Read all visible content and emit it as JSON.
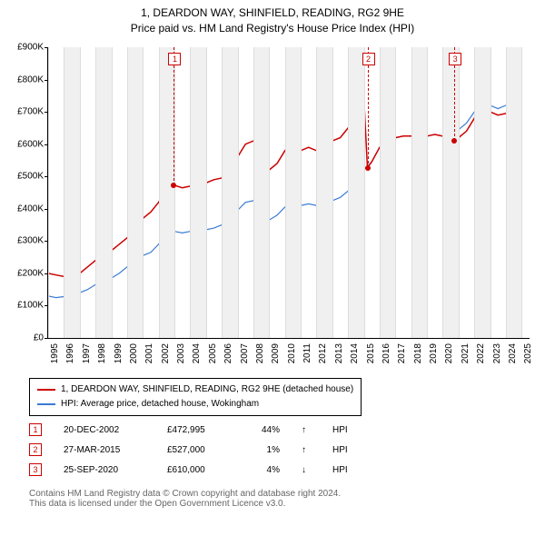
{
  "title_line1": "1, DEARDON WAY, SHINFIELD, READING, RG2 9HE",
  "title_line2": "Price paid vs. HM Land Registry's House Price Index (HPI)",
  "chart": {
    "type": "line",
    "xrange": [
      1995,
      2025.5
    ],
    "yrange": [
      0,
      900000
    ],
    "ytick_step": 100000,
    "ytick_labels": [
      "£0",
      "£100K",
      "£200K",
      "£300K",
      "£400K",
      "£500K",
      "£600K",
      "£700K",
      "£800K",
      "£900K"
    ],
    "xtick_years": [
      1995,
      1996,
      1997,
      1998,
      1999,
      2000,
      2001,
      2002,
      2003,
      2004,
      2005,
      2006,
      2007,
      2008,
      2009,
      2010,
      2011,
      2012,
      2013,
      2014,
      2015,
      2016,
      2017,
      2018,
      2019,
      2020,
      2021,
      2022,
      2023,
      2024,
      2025
    ],
    "band_color": "#f0f0f0",
    "grid_color": "#dddddd",
    "background_color": "#ffffff",
    "series": {
      "red": {
        "label": "1, DEARDON WAY, SHINFIELD, READING, RG2 9HE (detached house)",
        "color": "#cc0000",
        "width": 1.5,
        "points": [
          [
            1995,
            200000
          ],
          [
            1995.5,
            195000
          ],
          [
            1996,
            190000
          ],
          [
            1996.5,
            195000
          ],
          [
            1997,
            200000
          ],
          [
            1997.5,
            220000
          ],
          [
            1998,
            240000
          ],
          [
            1998.5,
            260000
          ],
          [
            1999,
            270000
          ],
          [
            1999.5,
            290000
          ],
          [
            2000,
            310000
          ],
          [
            2000.5,
            340000
          ],
          [
            2001,
            370000
          ],
          [
            2001.5,
            390000
          ],
          [
            2002,
            420000
          ],
          [
            2002.5,
            460000
          ],
          [
            2002.97,
            472995
          ],
          [
            2003.5,
            465000
          ],
          [
            2004,
            470000
          ],
          [
            2004.5,
            485000
          ],
          [
            2005,
            480000
          ],
          [
            2005.5,
            490000
          ],
          [
            2006,
            495000
          ],
          [
            2006.5,
            520000
          ],
          [
            2007,
            560000
          ],
          [
            2007.5,
            600000
          ],
          [
            2008,
            610000
          ],
          [
            2008.5,
            580000
          ],
          [
            2009,
            520000
          ],
          [
            2009.5,
            540000
          ],
          [
            2010,
            580000
          ],
          [
            2010.5,
            600000
          ],
          [
            2011,
            580000
          ],
          [
            2011.5,
            590000
          ],
          [
            2012,
            580000
          ],
          [
            2012.5,
            600000
          ],
          [
            2013,
            610000
          ],
          [
            2013.5,
            620000
          ],
          [
            2014,
            650000
          ],
          [
            2014.5,
            700000
          ],
          [
            2015,
            750000
          ],
          [
            2015.23,
            527000
          ],
          [
            2015.5,
            545000
          ],
          [
            2016,
            590000
          ],
          [
            2016.5,
            610000
          ],
          [
            2017,
            620000
          ],
          [
            2017.5,
            625000
          ],
          [
            2018,
            625000
          ],
          [
            2018.5,
            620000
          ],
          [
            2019,
            625000
          ],
          [
            2019.5,
            630000
          ],
          [
            2020,
            625000
          ],
          [
            2020.5,
            630000
          ],
          [
            2020.73,
            610000
          ],
          [
            2021,
            620000
          ],
          [
            2021.5,
            640000
          ],
          [
            2022,
            680000
          ],
          [
            2022.5,
            720000
          ],
          [
            2023,
            700000
          ],
          [
            2023.5,
            690000
          ],
          [
            2024,
            695000
          ],
          [
            2024.5,
            700000
          ],
          [
            2025,
            700000
          ]
        ]
      },
      "blue": {
        "label": "HPI: Average price, detached house, Wokingham",
        "color": "#3a7bd5",
        "width": 1.2,
        "points": [
          [
            1995,
            130000
          ],
          [
            1995.5,
            125000
          ],
          [
            1996,
            128000
          ],
          [
            1996.5,
            132000
          ],
          [
            1997,
            140000
          ],
          [
            1997.5,
            150000
          ],
          [
            1998,
            165000
          ],
          [
            1998.5,
            175000
          ],
          [
            1999,
            185000
          ],
          [
            1999.5,
            200000
          ],
          [
            2000,
            220000
          ],
          [
            2000.5,
            240000
          ],
          [
            2001,
            255000
          ],
          [
            2001.5,
            265000
          ],
          [
            2002,
            290000
          ],
          [
            2002.5,
            320000
          ],
          [
            2003,
            330000
          ],
          [
            2003.5,
            325000
          ],
          [
            2004,
            330000
          ],
          [
            2004.5,
            340000
          ],
          [
            2005,
            335000
          ],
          [
            2005.5,
            340000
          ],
          [
            2006,
            350000
          ],
          [
            2006.5,
            365000
          ],
          [
            2007,
            395000
          ],
          [
            2007.5,
            420000
          ],
          [
            2008,
            425000
          ],
          [
            2008.5,
            405000
          ],
          [
            2009,
            365000
          ],
          [
            2009.5,
            380000
          ],
          [
            2010,
            405000
          ],
          [
            2010.5,
            420000
          ],
          [
            2011,
            410000
          ],
          [
            2011.5,
            415000
          ],
          [
            2012,
            410000
          ],
          [
            2012.5,
            420000
          ],
          [
            2013,
            425000
          ],
          [
            2013.5,
            435000
          ],
          [
            2014,
            455000
          ],
          [
            2014.5,
            490000
          ],
          [
            2015,
            520000
          ],
          [
            2015.5,
            545000
          ],
          [
            2016,
            590000
          ],
          [
            2016.5,
            610000
          ],
          [
            2017,
            620000
          ],
          [
            2017.5,
            625000
          ],
          [
            2018,
            625000
          ],
          [
            2018.5,
            620000
          ],
          [
            2019,
            625000
          ],
          [
            2019.5,
            630000
          ],
          [
            2020,
            625000
          ],
          [
            2020.5,
            635000
          ],
          [
            2021,
            645000
          ],
          [
            2021.5,
            665000
          ],
          [
            2022,
            700000
          ],
          [
            2022.5,
            740000
          ],
          [
            2023,
            720000
          ],
          [
            2023.5,
            710000
          ],
          [
            2024,
            720000
          ],
          [
            2024.5,
            730000
          ],
          [
            2025,
            730000
          ]
        ]
      }
    },
    "markers": [
      {
        "n": "1",
        "year": 2002.97,
        "value": 472995,
        "color": "#cc0000"
      },
      {
        "n": "2",
        "year": 2015.23,
        "value": 527000,
        "color": "#cc0000"
      },
      {
        "n": "3",
        "year": 2020.73,
        "value": 610000,
        "color": "#cc0000"
      }
    ]
  },
  "legend": {
    "s1_label": "1, DEARDON WAY, SHINFIELD, READING, RG2 9HE (detached house)",
    "s1_color": "#cc0000",
    "s2_label": "HPI: Average price, detached house, Wokingham",
    "s2_color": "#3a7bd5"
  },
  "sales": [
    {
      "n": "1",
      "color": "#cc0000",
      "date": "20-DEC-2002",
      "price": "£472,995",
      "pct": "44%",
      "arrow": "↑",
      "hpi": "HPI"
    },
    {
      "n": "2",
      "color": "#cc0000",
      "date": "27-MAR-2015",
      "price": "£527,000",
      "pct": "1%",
      "arrow": "↑",
      "hpi": "HPI"
    },
    {
      "n": "3",
      "color": "#cc0000",
      "date": "25-SEP-2020",
      "price": "£610,000",
      "pct": "4%",
      "arrow": "↓",
      "hpi": "HPI"
    }
  ],
  "footer_line1": "Contains HM Land Registry data © Crown copyright and database right 2024.",
  "footer_line2": "This data is licensed under the Open Government Licence v3.0."
}
